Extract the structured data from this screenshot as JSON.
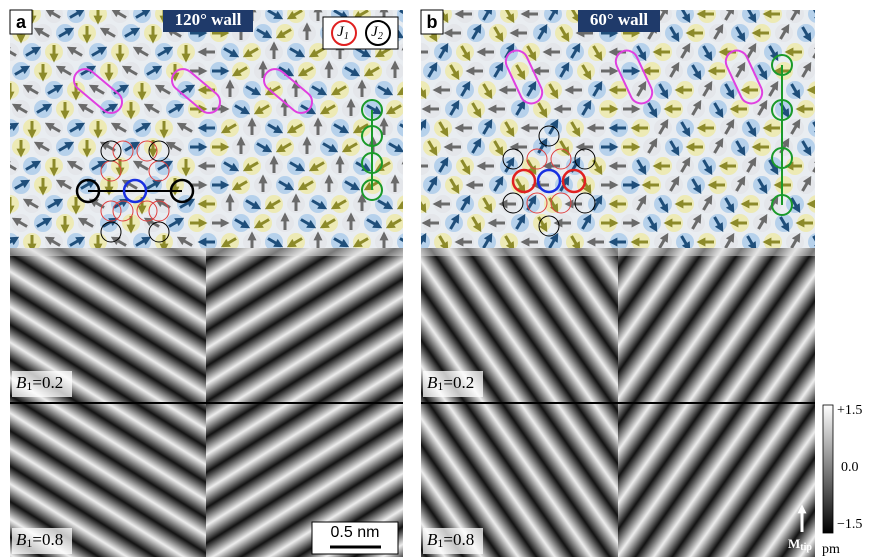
{
  "panels": [
    {
      "label": "a",
      "wall": "120° wall",
      "legend": [
        {
          "symbol": "J",
          "sub": "1"
        },
        {
          "symbol": "J",
          "sub": "2"
        }
      ],
      "maps": [
        {
          "symbol": "B",
          "sub": "1",
          "text": "=0.2"
        },
        {
          "symbol": "B",
          "sub": "1",
          "text": "=0.8"
        }
      ],
      "scalebar": "0.5 nm"
    },
    {
      "label": "b",
      "wall": "60° wall",
      "maps": [
        {
          "symbol": "B",
          "sub": "1",
          "text": "=0.2"
        },
        {
          "symbol": "B",
          "sub": "1",
          "text": "=0.8"
        }
      ],
      "tip": {
        "symbol": "M",
        "sub": "tip"
      }
    }
  ],
  "colorbar": {
    "ticks": [
      "+1.5",
      "0.0",
      "−1.5"
    ],
    "unit": "pm"
  }
}
